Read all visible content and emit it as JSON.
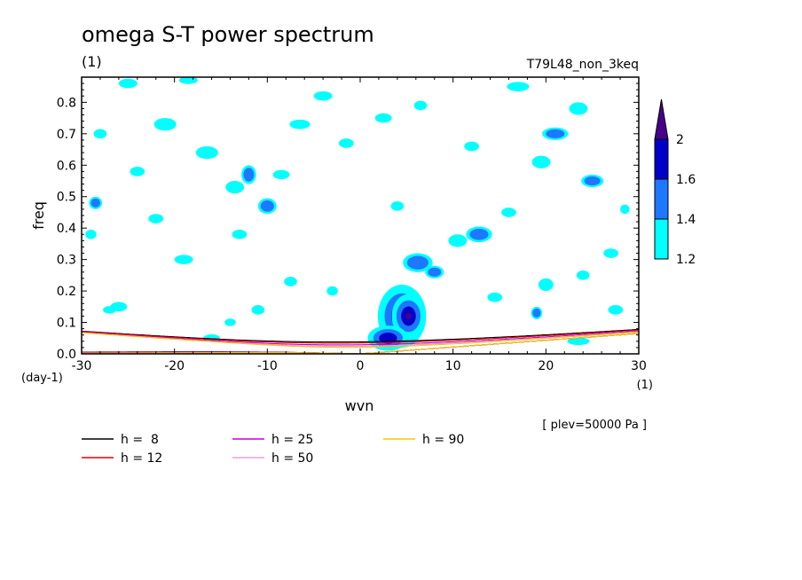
{
  "chart_data": {
    "type": "heatmap",
    "title": "omega S-T power spectrum",
    "title_unit": "(1)",
    "run_label": "T79L48_non_3keq",
    "xlabel": "wvn",
    "x_unit": "(1)",
    "ylabel": "freq",
    "y_unit": "(day-1)",
    "xlim": [
      -30,
      30
    ],
    "ylim": [
      0,
      0.88
    ],
    "x_ticks": [
      -30,
      -20,
      -10,
      0,
      10,
      20,
      30
    ],
    "x_tick_labels": [
      "-30",
      "-20",
      "-10",
      "0",
      "10",
      "20",
      "30"
    ],
    "y_ticks": [
      0,
      0.1,
      0.2,
      0.3,
      0.4,
      0.5,
      0.6,
      0.7,
      0.8
    ],
    "y_tick_labels": [
      "0.0",
      "0.1",
      "0.2",
      "0.3",
      "0.4",
      "0.5",
      "0.6",
      "0.7",
      "0.8"
    ],
    "plev_note": "[ plev=50000 Pa ]",
    "colorbar": {
      "levels": [
        1.2,
        1.4,
        1.6,
        2
      ],
      "labels": [
        "1.2",
        "1.4",
        "1.6",
        "2"
      ],
      "colors": [
        "#00ffff",
        "#1e78ff",
        "#0000c8",
        "#46008c"
      ]
    },
    "dispersion_curves": [
      {
        "label": "h =  8",
        "h": 8,
        "color": "#000000"
      },
      {
        "label": "h = 12",
        "h": 12,
        "color": "#e00000"
      },
      {
        "label": "h = 25",
        "h": 25,
        "color": "#c800c8"
      },
      {
        "label": "h = 50",
        "h": 50,
        "color": "#e6a0e6"
      },
      {
        "label": "h = 90",
        "h": 90,
        "color": "#f0c800"
      }
    ],
    "power_patches": [
      {
        "x": 4.5,
        "y": 0.12,
        "rx": 2.6,
        "ry": 0.1,
        "level": 3
      },
      {
        "x": 5.2,
        "y": 0.12,
        "rx": 1.8,
        "ry": 0.07,
        "level": 4
      },
      {
        "x": 3.0,
        "y": 0.05,
        "rx": 2.2,
        "ry": 0.04,
        "level": 3
      },
      {
        "x": 6.2,
        "y": 0.29,
        "rx": 1.6,
        "ry": 0.03,
        "level": 2
      },
      {
        "x": 8.0,
        "y": 0.26,
        "rx": 1.0,
        "ry": 0.02,
        "level": 2
      },
      {
        "x": 12.8,
        "y": 0.38,
        "rx": 1.4,
        "ry": 0.025,
        "level": 2
      },
      {
        "x": 10.5,
        "y": 0.36,
        "rx": 1.0,
        "ry": 0.02,
        "level": 1
      },
      {
        "x": 25.0,
        "y": 0.55,
        "rx": 1.2,
        "ry": 0.02,
        "level": 2
      },
      {
        "x": 19.5,
        "y": 0.61,
        "rx": 1.0,
        "ry": 0.02,
        "level": 1
      },
      {
        "x": 21.0,
        "y": 0.7,
        "rx": 1.4,
        "ry": 0.02,
        "level": 2
      },
      {
        "x": -12.0,
        "y": 0.57,
        "rx": 0.8,
        "ry": 0.03,
        "level": 2
      },
      {
        "x": -13.5,
        "y": 0.53,
        "rx": 1.0,
        "ry": 0.02,
        "level": 1
      },
      {
        "x": -10.0,
        "y": 0.47,
        "rx": 1.0,
        "ry": 0.025,
        "level": 2
      },
      {
        "x": -16.5,
        "y": 0.64,
        "rx": 1.2,
        "ry": 0.02,
        "level": 1
      },
      {
        "x": -21.0,
        "y": 0.73,
        "rx": 1.2,
        "ry": 0.02,
        "level": 1
      },
      {
        "x": -28.5,
        "y": 0.48,
        "rx": 0.7,
        "ry": 0.02,
        "level": 2
      },
      {
        "x": -29.0,
        "y": 0.38,
        "rx": 0.6,
        "ry": 0.015,
        "level": 1
      },
      {
        "x": -24.0,
        "y": 0.58,
        "rx": 0.8,
        "ry": 0.015,
        "level": 1
      },
      {
        "x": -19.0,
        "y": 0.3,
        "rx": 1.0,
        "ry": 0.015,
        "level": 1
      },
      {
        "x": -26.0,
        "y": 0.15,
        "rx": 0.9,
        "ry": 0.015,
        "level": 1
      },
      {
        "x": -27.0,
        "y": 0.14,
        "rx": 0.7,
        "ry": 0.012,
        "level": 1
      },
      {
        "x": -4.0,
        "y": 0.82,
        "rx": 1.0,
        "ry": 0.015,
        "level": 1
      },
      {
        "x": 2.5,
        "y": 0.75,
        "rx": 0.9,
        "ry": 0.015,
        "level": 1
      },
      {
        "x": -6.5,
        "y": 0.73,
        "rx": 1.1,
        "ry": 0.015,
        "level": 1
      },
      {
        "x": 23.5,
        "y": 0.78,
        "rx": 1.0,
        "ry": 0.02,
        "level": 1
      },
      {
        "x": 17.0,
        "y": 0.85,
        "rx": 1.2,
        "ry": 0.015,
        "level": 1
      },
      {
        "x": -25.0,
        "y": 0.86,
        "rx": 1.0,
        "ry": 0.015,
        "level": 1
      },
      {
        "x": -18.5,
        "y": 0.87,
        "rx": 1.0,
        "ry": 0.012,
        "level": 1
      },
      {
        "x": -1.5,
        "y": 0.67,
        "rx": 0.8,
        "ry": 0.015,
        "level": 1
      },
      {
        "x": -13.0,
        "y": 0.38,
        "rx": 0.8,
        "ry": 0.015,
        "level": 1
      },
      {
        "x": -8.5,
        "y": 0.57,
        "rx": 0.9,
        "ry": 0.015,
        "level": 1
      },
      {
        "x": 16.0,
        "y": 0.45,
        "rx": 0.8,
        "ry": 0.015,
        "level": 1
      },
      {
        "x": 27.0,
        "y": 0.32,
        "rx": 0.8,
        "ry": 0.015,
        "level": 1
      },
      {
        "x": 20.0,
        "y": 0.22,
        "rx": 0.8,
        "ry": 0.02,
        "level": 1
      },
      {
        "x": 27.5,
        "y": 0.14,
        "rx": 0.8,
        "ry": 0.015,
        "level": 1
      },
      {
        "x": 23.5,
        "y": 0.04,
        "rx": 1.2,
        "ry": 0.012,
        "level": 1
      },
      {
        "x": 19.0,
        "y": 0.13,
        "rx": 0.6,
        "ry": 0.02,
        "level": 2
      },
      {
        "x": 24.0,
        "y": 0.25,
        "rx": 0.7,
        "ry": 0.015,
        "level": 1
      },
      {
        "x": -28.0,
        "y": 0.7,
        "rx": 0.7,
        "ry": 0.015,
        "level": 1
      },
      {
        "x": -11.0,
        "y": 0.14,
        "rx": 0.7,
        "ry": 0.015,
        "level": 1
      },
      {
        "x": -14.0,
        "y": 0.1,
        "rx": 0.6,
        "ry": 0.012,
        "level": 1
      },
      {
        "x": -7.5,
        "y": 0.23,
        "rx": 0.7,
        "ry": 0.015,
        "level": 1
      },
      {
        "x": -22.0,
        "y": 0.43,
        "rx": 0.8,
        "ry": 0.015,
        "level": 1
      },
      {
        "x": 4.0,
        "y": 0.47,
        "rx": 0.7,
        "ry": 0.015,
        "level": 1
      },
      {
        "x": 14.5,
        "y": 0.18,
        "rx": 0.8,
        "ry": 0.015,
        "level": 1
      },
      {
        "x": 28.5,
        "y": 0.46,
        "rx": 0.5,
        "ry": 0.015,
        "level": 1
      },
      {
        "x": -16.0,
        "y": 0.05,
        "rx": 0.9,
        "ry": 0.012,
        "level": 1
      },
      {
        "x": -3.0,
        "y": 0.2,
        "rx": 0.6,
        "ry": 0.015,
        "level": 1
      },
      {
        "x": 12.0,
        "y": 0.66,
        "rx": 0.8,
        "ry": 0.015,
        "level": 1
      },
      {
        "x": 6.5,
        "y": 0.79,
        "rx": 0.7,
        "ry": 0.015,
        "level": 1
      }
    ]
  }
}
